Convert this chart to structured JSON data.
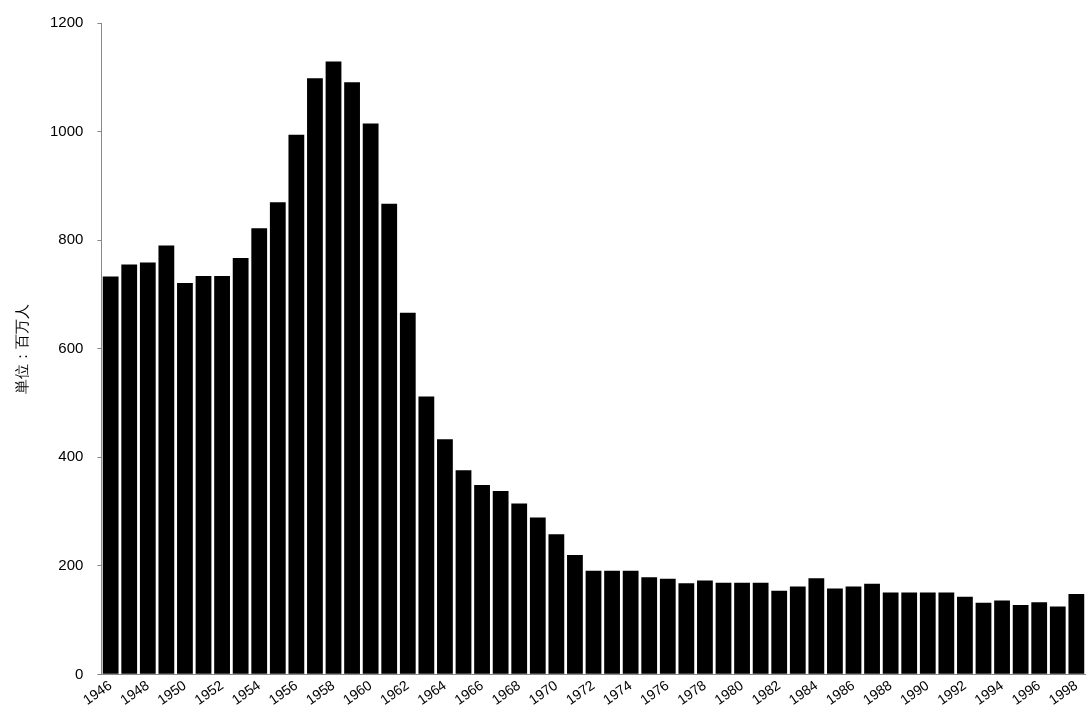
{
  "chart_data": {
    "type": "bar",
    "ylabel": "単位：百万人",
    "categories": [
      "1946",
      null,
      "1948",
      null,
      "1950",
      null,
      "1952",
      null,
      "1954",
      null,
      "1956",
      null,
      "1958",
      null,
      "1960",
      null,
      "1962",
      null,
      "1964",
      null,
      "1966",
      null,
      "1968",
      null,
      "1970",
      null,
      "1972",
      null,
      "1974",
      null,
      "1976",
      null,
      "1978",
      null,
      "1980",
      null,
      "1982",
      null,
      "1984",
      null,
      "1986",
      null,
      "1988",
      null,
      "1990",
      null,
      "1992",
      null,
      "1994",
      null,
      "1996",
      null,
      "1998"
    ],
    "values": [
      733,
      755,
      759,
      790,
      721,
      734,
      734,
      767,
      822,
      870,
      994,
      1098,
      1129,
      1091,
      1015,
      867,
      666,
      512,
      433,
      376,
      349,
      338,
      315,
      289,
      258,
      220,
      191,
      191,
      191,
      179,
      176,
      168,
      173,
      169,
      169,
      169,
      154,
      162,
      177,
      158,
      162,
      167,
      151,
      151,
      151,
      151,
      143,
      132,
      136,
      128,
      133,
      125,
      148
    ],
    "color": "#000000",
    "ylim": [
      0,
      1200
    ],
    "yticks": [
      0,
      200,
      400,
      600,
      800,
      1000,
      1200
    ],
    "grid": false
  }
}
